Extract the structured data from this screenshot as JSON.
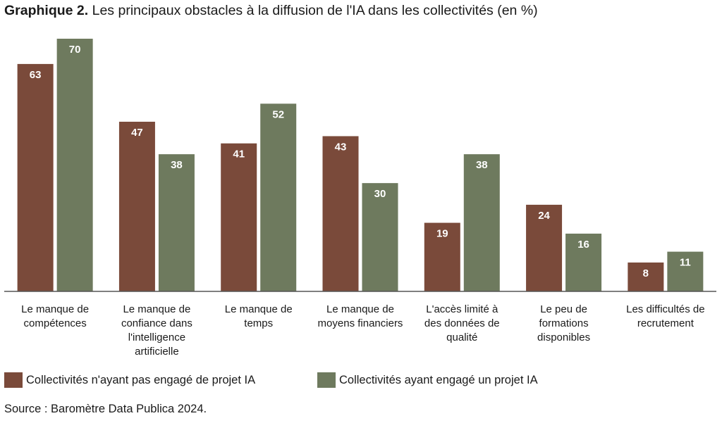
{
  "title": {
    "prefix": "Graphique 2.",
    "text": " Les principaux obstacles à la diffusion de l'IA dans les collectivités (en %)"
  },
  "colors": {
    "series_a": "#7a4a3a",
    "series_b": "#6e7a5e",
    "axis": "#555555"
  },
  "chart_data": {
    "type": "bar",
    "title": "Graphique 2. Les principaux obstacles à la diffusion de l'IA dans les collectivités (en %)",
    "categories": [
      "Le manque de compétences",
      "Le manque de confiance dans l'intelligence artificielle",
      "Le manque de temps",
      "Le manque de moyens financiers",
      "L'accès limité à des données de qualité",
      "Le peu de formations disponibles",
      "Les difficultés de recrutement"
    ],
    "category_lines": [
      [
        "Le manque de",
        "compétences"
      ],
      [
        "Le manque de",
        "confiance dans",
        "l'intelligence",
        "artificielle"
      ],
      [
        "Le manque de",
        "temps"
      ],
      [
        "Le manque de",
        "moyens financiers"
      ],
      [
        "L'accès limité à",
        "des données de",
        "qualité"
      ],
      [
        "Le peu de",
        "formations",
        "disponibles"
      ],
      [
        "Les difficultés de",
        "recrutement"
      ]
    ],
    "series": [
      {
        "name": "Collectivités n'ayant pas engagé de projet IA",
        "values": [
          63,
          47,
          41,
          43,
          19,
          24,
          8
        ]
      },
      {
        "name": "Collectivités ayant engagé un projet IA",
        "values": [
          70,
          38,
          52,
          30,
          38,
          16,
          11
        ]
      }
    ],
    "xlabel": "",
    "ylabel": "",
    "ylim": [
      0,
      70
    ],
    "grid": false,
    "legend_position": "bottom-left",
    "data_labels": true
  },
  "legend": {
    "a": "Collectivités n'ayant pas engagé de projet IA",
    "b": "Collectivités ayant engagé un projet IA"
  },
  "source": "Source : Baromètre Data Publica 2024."
}
